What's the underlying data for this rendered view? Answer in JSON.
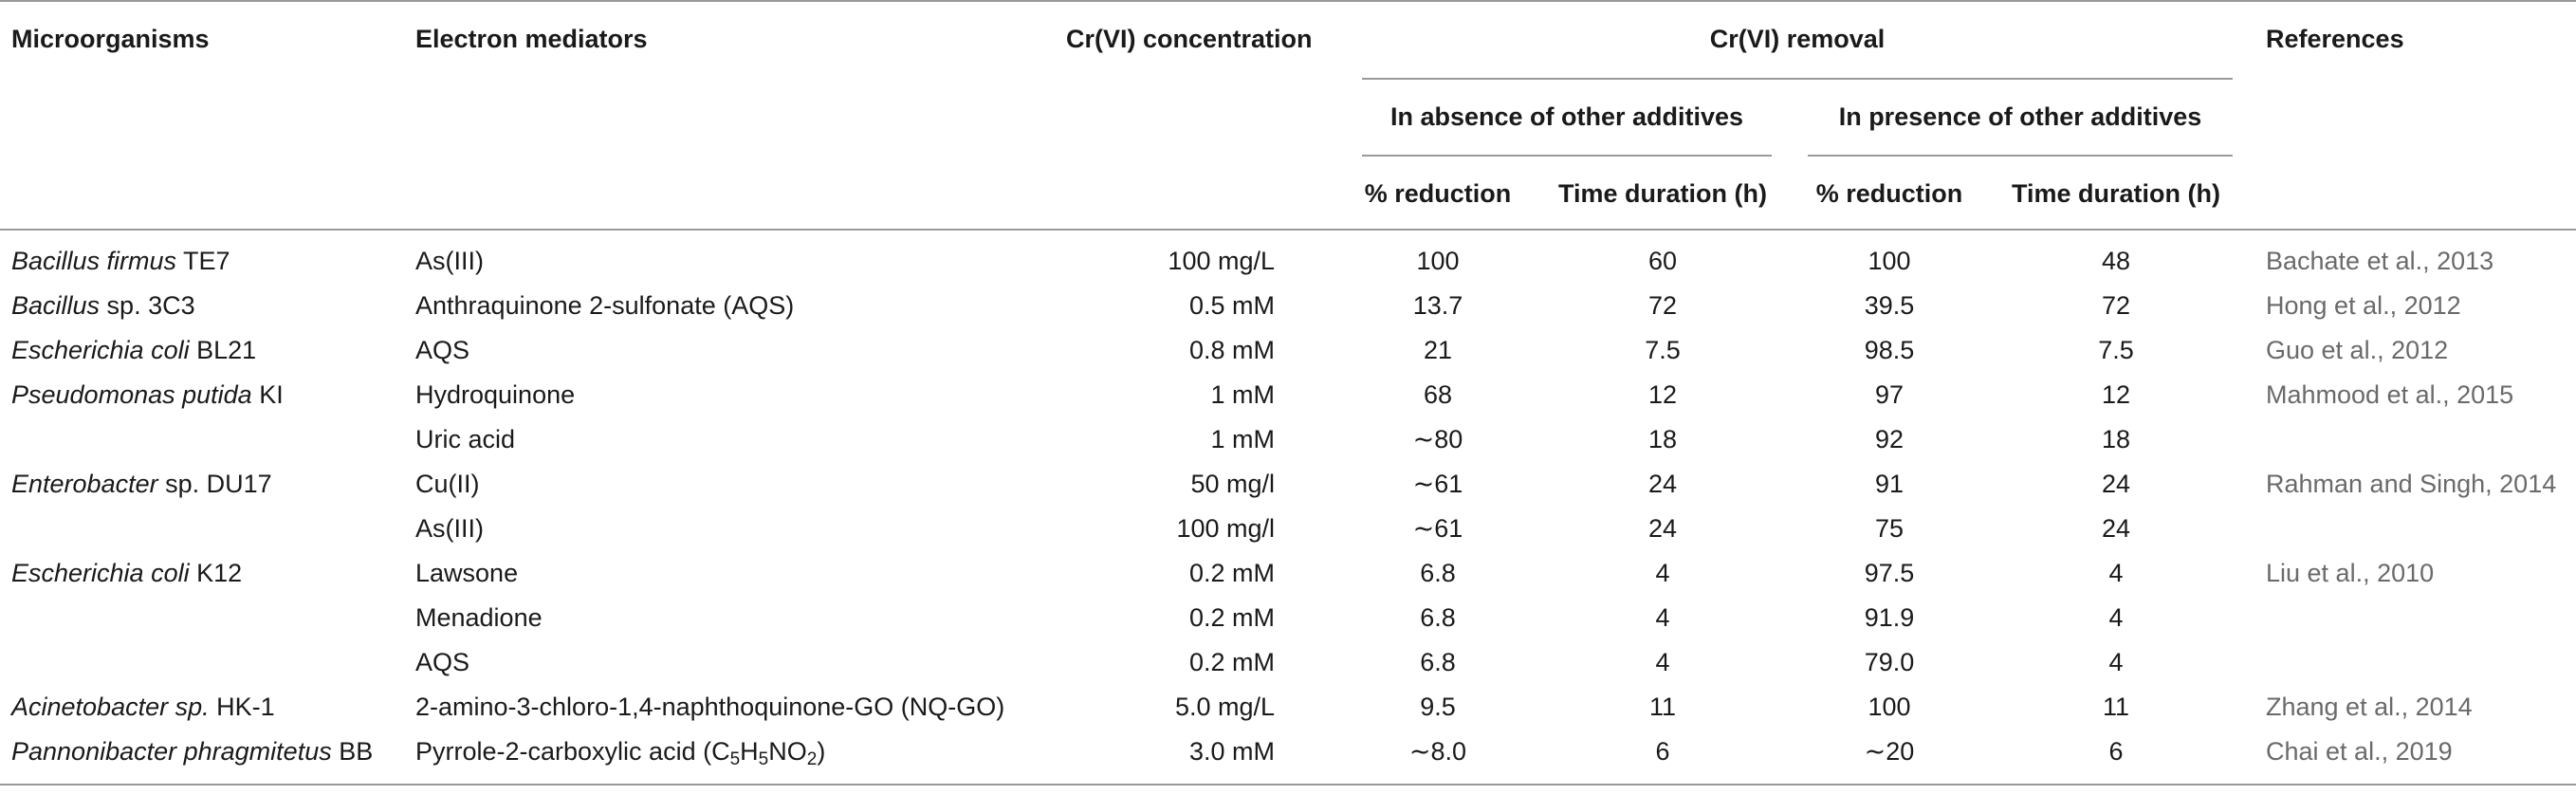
{
  "headers": {
    "microorganisms": "Microorganisms",
    "electron_mediators": "Electron mediators",
    "concentration": "Cr(VI) concentration",
    "removal": "Cr(VI) removal",
    "references": "References",
    "absence": "In absence of other additives",
    "presence": "In presence of other additives",
    "pct_reduction_1": "% reduction",
    "time_1": "Time duration (h)",
    "pct_reduction_2": "% reduction",
    "time_2": "Time duration (h)"
  },
  "rows": [
    {
      "organism_italic": "Bacillus firmus",
      "organism_rest": " TE7",
      "mediator": "As(III)",
      "concentration": "100 mg/L",
      "abs_pct": "100",
      "abs_time": "60",
      "pres_pct": "100",
      "pres_time": "48",
      "reference": "Bachate et al., 2013"
    },
    {
      "organism_italic": "Bacillus",
      "organism_rest": " sp. 3C3",
      "mediator": "Anthraquinone 2-sulfonate (AQS)",
      "concentration": "0.5 mM",
      "abs_pct": "13.7",
      "abs_time": "72",
      "pres_pct": "39.5",
      "pres_time": "72",
      "reference": "Hong et al., 2012"
    },
    {
      "organism_italic": "Escherichia coli",
      "organism_rest": " BL21",
      "mediator": "AQS",
      "concentration": "0.8 mM",
      "abs_pct": "21",
      "abs_time": "7.5",
      "pres_pct": "98.5",
      "pres_time": "7.5",
      "reference": "Guo et al., 2012"
    },
    {
      "organism_italic": "Pseudomonas putida",
      "organism_rest": " KI",
      "mediator": "Hydroquinone",
      "concentration": "1 mM",
      "abs_pct": "68",
      "abs_time": "12",
      "pres_pct": "97",
      "pres_time": "12",
      "reference": "Mahmood et al., 2015"
    },
    {
      "organism_italic": "",
      "organism_rest": "",
      "mediator": "Uric acid",
      "concentration": "1 mM",
      "abs_pct": "∼80",
      "abs_time": "18",
      "pres_pct": "92",
      "pres_time": "18",
      "reference": ""
    },
    {
      "organism_italic": "Enterobacter",
      "organism_rest": " sp. DU17",
      "mediator": "Cu(II)",
      "concentration": "50 mg/l",
      "abs_pct": "∼61",
      "abs_time": "24",
      "pres_pct": "91",
      "pres_time": "24",
      "reference": "Rahman and Singh, 2014"
    },
    {
      "organism_italic": "",
      "organism_rest": "",
      "mediator": "As(III)",
      "concentration": "100 mg/l",
      "abs_pct": "∼61",
      "abs_time": "24",
      "pres_pct": "75",
      "pres_time": "24",
      "reference": ""
    },
    {
      "organism_italic": "Escherichia coli",
      "organism_rest": " K12",
      "mediator": "Lawsone",
      "concentration": "0.2 mM",
      "abs_pct": "6.8",
      "abs_time": "4",
      "pres_pct": "97.5",
      "pres_time": "4",
      "reference": "Liu et al., 2010"
    },
    {
      "organism_italic": "",
      "organism_rest": "",
      "mediator": "Menadione",
      "concentration": "0.2 mM",
      "abs_pct": "6.8",
      "abs_time": "4",
      "pres_pct": "91.9",
      "pres_time": "4",
      "reference": ""
    },
    {
      "organism_italic": "",
      "organism_rest": "",
      "mediator": "AQS",
      "concentration": "0.2 mM",
      "abs_pct": "6.8",
      "abs_time": "4",
      "pres_pct": "79.0",
      "pres_time": "4",
      "reference": ""
    },
    {
      "organism_italic": "Acinetobacter sp.",
      "organism_rest": " HK-1",
      "mediator": "2-amino-3-chloro-1,4-naphthoquinone-GO (NQ-GO)",
      "concentration": "5.0 mg/L",
      "abs_pct": "9.5",
      "abs_time": "11",
      "pres_pct": "100",
      "pres_time": "11",
      "reference": "Zhang et al., 2014"
    },
    {
      "organism_italic": "Pannonibacter phragmitetus",
      "organism_rest": " BB",
      "mediator_prefix": "Pyrrole-2-carboxylic acid (C",
      "mediator_sub1": "5",
      "mediator_h": "H",
      "mediator_sub2": "5",
      "mediator_no": "NO",
      "mediator_sub3": "2",
      "mediator_suffix": ")",
      "concentration": "3.0 mM",
      "abs_pct": "∼8.0",
      "abs_time": "6",
      "pres_pct": "∼20",
      "pres_time": "6",
      "reference": "Chai et al., 2019"
    }
  ]
}
